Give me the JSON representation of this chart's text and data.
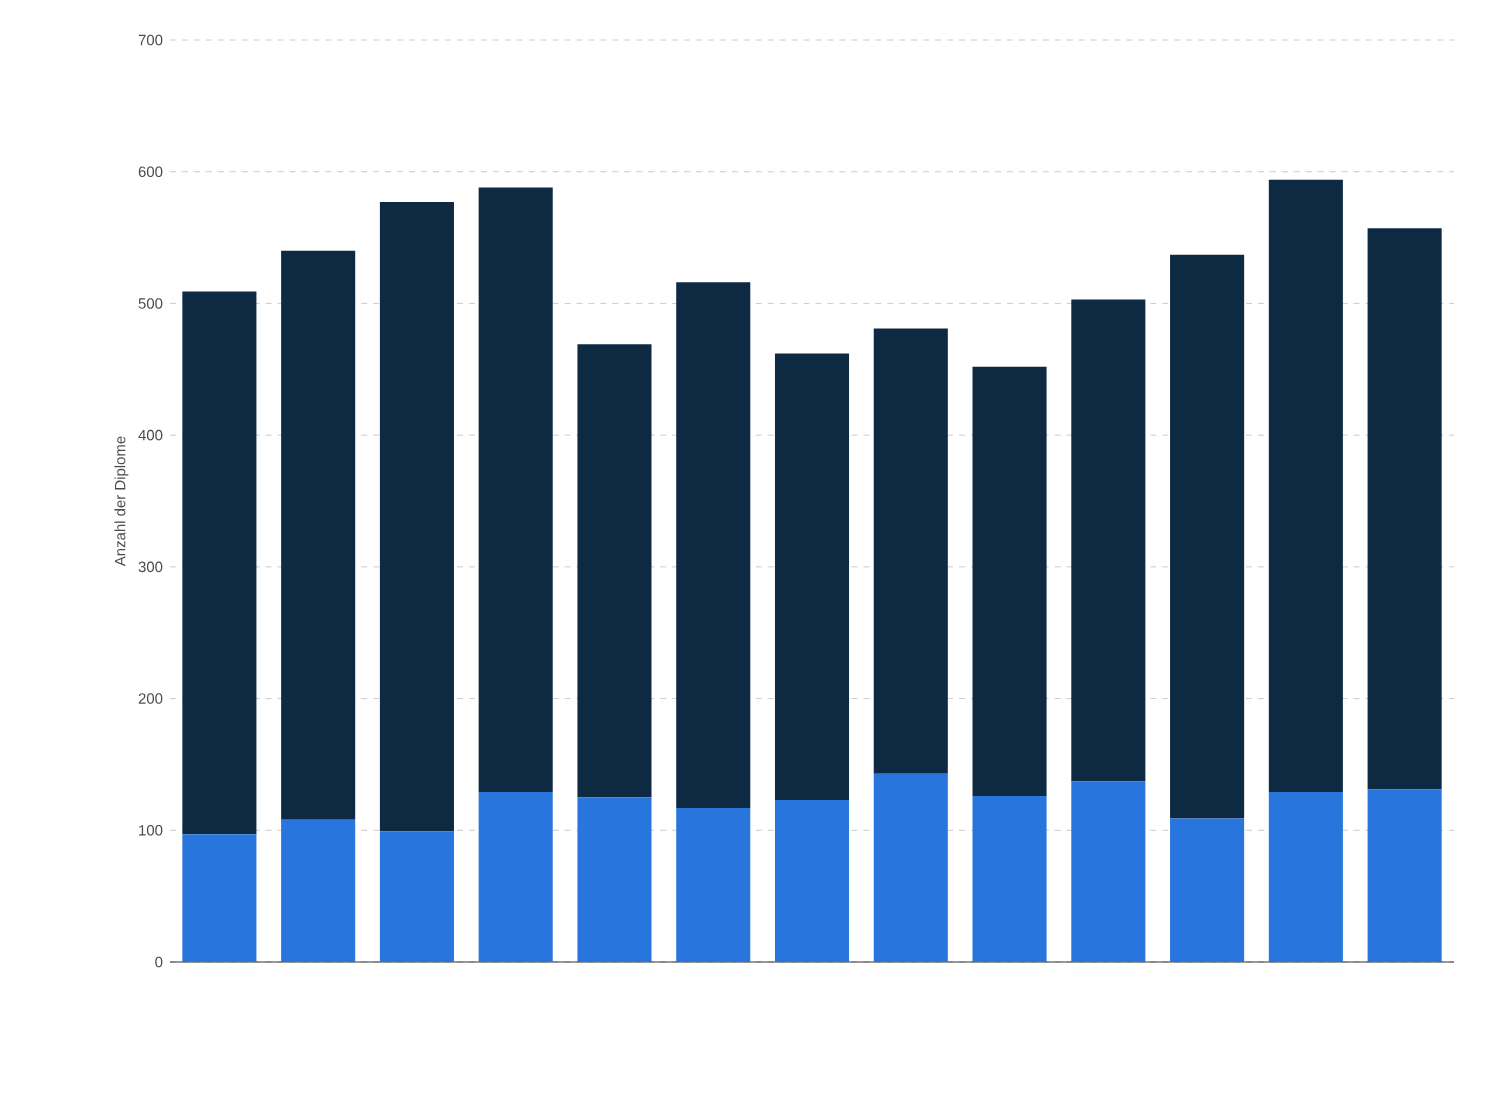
{
  "chart_data": {
    "type": "bar",
    "stacked": true,
    "ylabel": "Anzahl der Diplome",
    "categories": [
      null,
      null,
      null,
      null,
      null,
      null,
      null,
      null,
      null,
      null,
      null,
      null,
      null
    ],
    "series": [
      {
        "color": "#2876dd",
        "values": [
          97,
          108,
          99,
          129,
          125,
          117,
          123,
          143,
          126,
          137,
          109,
          129,
          131
        ]
      },
      {
        "color": "#0e2a42",
        "values": [
          412,
          432,
          478,
          459,
          344,
          399,
          339,
          338,
          326,
          366,
          428,
          465,
          426
        ]
      }
    ],
    "ylim": [
      0,
      700
    ],
    "yticks": [
      0,
      100,
      200,
      300,
      400,
      500,
      600,
      700
    ],
    "grid": "y"
  }
}
